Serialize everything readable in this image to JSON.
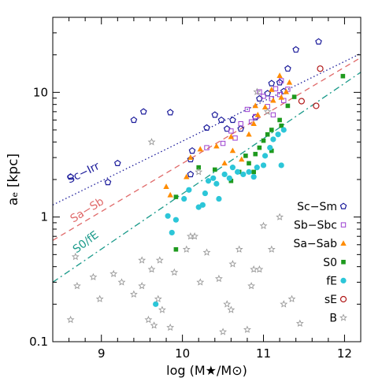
{
  "chart_data": {
    "type": "scatter",
    "title": "",
    "xlabel": "log (M★/M⊙)",
    "ylabel": "aₑ [kpc]",
    "xlim": [
      8.4,
      12.2
    ],
    "ylim": [
      0.1,
      40
    ],
    "yscale": "log",
    "x_ticks": [
      9,
      10,
      11,
      12
    ],
    "y_ticks": [
      {
        "value": 0.1,
        "label": "0.1"
      },
      {
        "value": 1,
        "label": "1"
      },
      {
        "value": 10,
        "label": "10"
      }
    ],
    "legend_position": "lower-right",
    "colors": {
      "Sc-Sm": "#1a1a9a",
      "Sb-Sbc": "#9b3fd0",
      "Sa-Sab": "#ff8c00",
      "S0": "#1e9a1e",
      "fE": "#2cc6d8",
      "sE": "#b01818",
      "B": "#9a9a9a"
    },
    "series": [
      {
        "name": "Sc−Sm",
        "key": "Sc-Sm",
        "marker": "pentagon-open",
        "points": [
          [
            8.62,
            2.1
          ],
          [
            9.08,
            1.9
          ],
          [
            9.2,
            2.7
          ],
          [
            9.4,
            6.0
          ],
          [
            9.85,
            6.9
          ],
          [
            9.52,
            7.0
          ],
          [
            10.12,
            3.4
          ],
          [
            10.1,
            2.9
          ],
          [
            10.4,
            6.6
          ],
          [
            10.48,
            6.0
          ],
          [
            10.55,
            5.1
          ],
          [
            10.62,
            6.0
          ],
          [
            10.72,
            5.1
          ],
          [
            10.9,
            6.3
          ],
          [
            10.95,
            8.9
          ],
          [
            11.05,
            9.8
          ],
          [
            11.1,
            11.8
          ],
          [
            11.25,
            10.2
          ],
          [
            11.2,
            12.0
          ],
          [
            11.3,
            15.5
          ],
          [
            11.4,
            22.0
          ],
          [
            11.68,
            25.5
          ],
          [
            10.3,
            5.2
          ],
          [
            10.1,
            2.2
          ]
        ]
      },
      {
        "name": "Sb−Sbc",
        "key": "Sb-Sbc",
        "marker": "square-open",
        "points": [
          [
            10.5,
            3.9
          ],
          [
            10.65,
            4.3
          ],
          [
            10.72,
            5.6
          ],
          [
            10.9,
            6.4
          ],
          [
            10.8,
            7.3
          ],
          [
            11.0,
            9.3
          ],
          [
            11.05,
            7.7
          ],
          [
            11.1,
            8.9
          ],
          [
            11.15,
            10.7
          ],
          [
            11.2,
            9.6
          ],
          [
            11.25,
            8.6
          ],
          [
            11.3,
            10.6
          ],
          [
            10.95,
            10.1
          ],
          [
            10.6,
            4.9
          ],
          [
            11.12,
            6.6
          ],
          [
            10.85,
            5.8
          ],
          [
            11.22,
            12.4
          ],
          [
            10.3,
            3.6
          ]
        ]
      },
      {
        "name": "Sa−Sab",
        "key": "Sa-Sab",
        "marker": "triangle",
        "points": [
          [
            9.8,
            1.75
          ],
          [
            9.85,
            1.5
          ],
          [
            10.05,
            2.1
          ],
          [
            10.1,
            3.0
          ],
          [
            10.22,
            3.5
          ],
          [
            10.42,
            3.7
          ],
          [
            10.52,
            2.7
          ],
          [
            10.62,
            3.4
          ],
          [
            10.73,
            2.9
          ],
          [
            10.82,
            4.6
          ],
          [
            10.88,
            5.6
          ],
          [
            10.93,
            6.6
          ],
          [
            11.02,
            7.6
          ],
          [
            11.12,
            8.6
          ],
          [
            11.22,
            9.1
          ],
          [
            11.28,
            10.1
          ],
          [
            11.32,
            12.0
          ],
          [
            11.1,
            10.5
          ],
          [
            10.9,
            7.8
          ],
          [
            11.2,
            13.6
          ],
          [
            10.6,
            4.4
          ]
        ]
      },
      {
        "name": "S0",
        "key": "S0",
        "marker": "square",
        "points": [
          [
            9.92,
            0.55
          ],
          [
            9.92,
            1.45
          ],
          [
            10.2,
            2.5
          ],
          [
            10.4,
            2.4
          ],
          [
            10.6,
            1.95
          ],
          [
            10.7,
            2.3
          ],
          [
            10.78,
            3.1
          ],
          [
            10.82,
            2.7
          ],
          [
            10.9,
            3.2
          ],
          [
            10.95,
            3.6
          ],
          [
            11.0,
            4.1
          ],
          [
            11.05,
            4.6
          ],
          [
            11.1,
            5.0
          ],
          [
            11.2,
            6.0
          ],
          [
            11.22,
            5.4
          ],
          [
            11.3,
            7.8
          ],
          [
            11.38,
            9.2
          ],
          [
            11.98,
            13.5
          ],
          [
            10.88,
            2.3
          ],
          [
            11.1,
            3.4
          ]
        ]
      },
      {
        "name": "fE",
        "key": "fE",
        "marker": "circle",
        "points": [
          [
            9.67,
            0.2
          ],
          [
            9.82,
            1.02
          ],
          [
            9.87,
            0.75
          ],
          [
            9.92,
            0.95
          ],
          [
            10.02,
            1.4
          ],
          [
            10.08,
            1.65
          ],
          [
            10.2,
            1.2
          ],
          [
            10.25,
            1.25
          ],
          [
            10.28,
            1.55
          ],
          [
            10.32,
            1.95
          ],
          [
            10.38,
            2.05
          ],
          [
            10.42,
            1.85
          ],
          [
            10.45,
            1.4
          ],
          [
            10.52,
            2.2
          ],
          [
            10.58,
            2.05
          ],
          [
            10.62,
            2.5
          ],
          [
            10.68,
            2.3
          ],
          [
            10.75,
            2.2
          ],
          [
            10.82,
            2.3
          ],
          [
            10.88,
            2.1
          ],
          [
            10.92,
            2.5
          ],
          [
            11.0,
            2.6
          ],
          [
            11.02,
            3.1
          ],
          [
            11.08,
            3.6
          ],
          [
            11.12,
            4.2
          ],
          [
            11.18,
            4.6
          ],
          [
            11.22,
            2.6
          ],
          [
            11.25,
            5.0
          ]
        ]
      },
      {
        "name": "sE",
        "key": "sE",
        "marker": "circle-open",
        "points": [
          [
            11.47,
            8.5
          ],
          [
            11.65,
            7.8
          ],
          [
            11.7,
            15.5
          ]
        ]
      },
      {
        "name": "B",
        "key": "B",
        "marker": "star-open",
        "points": [
          [
            8.68,
            0.48
          ],
          [
            8.62,
            0.15
          ],
          [
            8.7,
            0.28
          ],
          [
            8.9,
            0.33
          ],
          [
            8.98,
            0.22
          ],
          [
            9.15,
            0.35
          ],
          [
            9.25,
            0.3
          ],
          [
            9.4,
            0.24
          ],
          [
            9.5,
            0.28
          ],
          [
            9.5,
            0.45
          ],
          [
            9.58,
            0.15
          ],
          [
            9.62,
            0.38
          ],
          [
            9.65,
            0.135
          ],
          [
            9.7,
            0.22
          ],
          [
            9.75,
            0.18
          ],
          [
            9.72,
            0.45
          ],
          [
            9.85,
            0.13
          ],
          [
            9.9,
            0.36
          ],
          [
            10.05,
            0.55
          ],
          [
            10.1,
            0.7
          ],
          [
            10.15,
            0.7
          ],
          [
            10.22,
            0.3
          ],
          [
            10.3,
            0.52
          ],
          [
            10.45,
            0.32
          ],
          [
            10.5,
            0.12
          ],
          [
            10.55,
            0.2
          ],
          [
            10.6,
            0.18
          ],
          [
            10.62,
            0.42
          ],
          [
            10.7,
            0.55
          ],
          [
            10.8,
            0.125
          ],
          [
            10.85,
            0.28
          ],
          [
            10.88,
            0.38
          ],
          [
            10.95,
            0.38
          ],
          [
            11.0,
            0.85
          ],
          [
            11.1,
            0.55
          ],
          [
            11.2,
            1.0
          ],
          [
            11.25,
            0.2
          ],
          [
            11.35,
            0.22
          ],
          [
            11.45,
            0.14
          ],
          [
            9.62,
            4.0
          ],
          [
            10.2,
            2.3
          ],
          [
            10.92,
            10.1
          ],
          [
            11.05,
            7.0
          ]
        ]
      }
    ],
    "fit_lines": [
      {
        "label": "Sc−Irr",
        "key": "Sc-Sm",
        "style": "dotted",
        "x": [
          8.4,
          12.2
        ],
        "y": [
          1.25,
          20.5
        ]
      },
      {
        "label": "Sa−Sb",
        "key": "Sa-Sb",
        "style": "dashed",
        "x": [
          8.4,
          12.2
        ],
        "y": [
          0.65,
          19.0
        ]
      },
      {
        "label": "S0/fE",
        "key": "S0",
        "style": "dashdot",
        "x": [
          8.4,
          12.2
        ],
        "y": [
          0.3,
          14.5
        ]
      }
    ]
  }
}
